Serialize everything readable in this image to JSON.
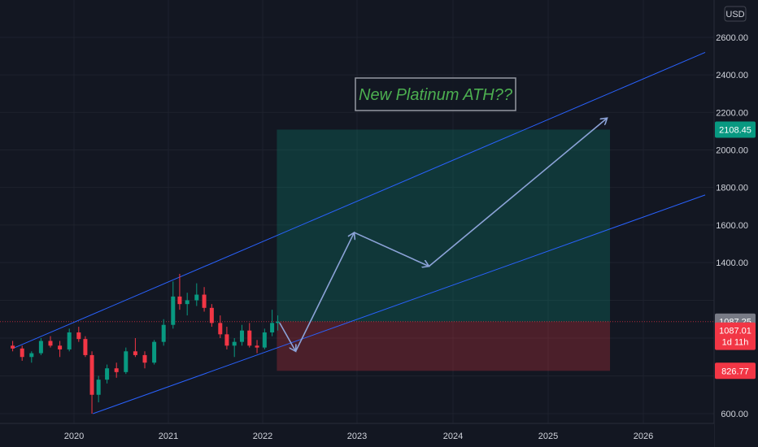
{
  "chart_data": {
    "type": "candlestick",
    "title": "",
    "xlabel": "",
    "ylabel": "",
    "currency": "USD",
    "y_ticks": [
      "600.00",
      "1400.00",
      "1600.00",
      "1800.00",
      "2000.00",
      "2200.00",
      "2400.00",
      "2600.00"
    ],
    "x_ticks": [
      "2020",
      "2021",
      "2022",
      "2023",
      "2024",
      "2025",
      "2026"
    ],
    "x_range": [
      "2019-06",
      "2026-10"
    ],
    "y_range": [
      560,
      2700
    ],
    "grid": true,
    "price_tags": [
      {
        "label": "2108.45",
        "value": 2108.45,
        "color": "#089981",
        "text_color": "#ffffff"
      },
      {
        "label": "1087.25",
        "value": 1087.25,
        "color": "#787b86",
        "text_color": "#ffffff"
      },
      {
        "label": "1087.01",
        "value": 1040,
        "color": "#f23645",
        "text_color": "#ffffff"
      },
      {
        "label": "1d 11h",
        "value": 980,
        "color": "#f23645",
        "text_color": "#ffffff"
      },
      {
        "label": "826.77",
        "value": 826.77,
        "color": "#f23645",
        "text_color": "#ffffff"
      }
    ],
    "long_position": {
      "entry": 1087.01,
      "target": 2108.45,
      "stop": 826.77,
      "start": "2022.15",
      "end": "2025.65"
    },
    "channel": {
      "upper": [
        {
          "x": 2019.35,
          "y": 945
        },
        {
          "x": 2026.65,
          "y": 2520
        }
      ],
      "lower": [
        {
          "x": 2020.2,
          "y": 600
        },
        {
          "x": 2026.65,
          "y": 1760
        }
      ]
    },
    "projection_path": [
      {
        "x": 2022.18,
        "y": 1080
      },
      {
        "x": 2022.35,
        "y": 930
      },
      {
        "x": 2022.97,
        "y": 1560
      },
      {
        "x": 2023.75,
        "y": 1380
      },
      {
        "x": 2025.62,
        "y": 2170
      }
    ],
    "annotation": "New Platinum ATH??",
    "series": [
      {
        "values": [
          {
            "t": 2019.35,
            "o": 960,
            "h": 985,
            "l": 930,
            "c": 945
          },
          {
            "t": 2019.45,
            "o": 945,
            "h": 960,
            "l": 880,
            "c": 900
          },
          {
            "t": 2019.55,
            "o": 900,
            "h": 930,
            "l": 870,
            "c": 920
          },
          {
            "t": 2019.65,
            "o": 920,
            "h": 1000,
            "l": 910,
            "c": 985
          },
          {
            "t": 2019.75,
            "o": 985,
            "h": 1010,
            "l": 950,
            "c": 960
          },
          {
            "t": 2019.85,
            "o": 960,
            "h": 985,
            "l": 900,
            "c": 940
          },
          {
            "t": 2019.95,
            "o": 940,
            "h": 1050,
            "l": 930,
            "c": 1030
          },
          {
            "t": 2020.05,
            "o": 1030,
            "h": 1060,
            "l": 980,
            "c": 995
          },
          {
            "t": 2020.12,
            "o": 995,
            "h": 1010,
            "l": 900,
            "c": 910
          },
          {
            "t": 2020.19,
            "o": 910,
            "h": 930,
            "l": 600,
            "c": 700
          },
          {
            "t": 2020.26,
            "o": 700,
            "h": 800,
            "l": 660,
            "c": 780
          },
          {
            "t": 2020.35,
            "o": 780,
            "h": 860,
            "l": 760,
            "c": 840
          },
          {
            "t": 2020.45,
            "o": 840,
            "h": 870,
            "l": 790,
            "c": 820
          },
          {
            "t": 2020.55,
            "o": 820,
            "h": 950,
            "l": 810,
            "c": 930
          },
          {
            "t": 2020.65,
            "o": 930,
            "h": 1000,
            "l": 900,
            "c": 910
          },
          {
            "t": 2020.75,
            "o": 910,
            "h": 930,
            "l": 840,
            "c": 870
          },
          {
            "t": 2020.85,
            "o": 870,
            "h": 990,
            "l": 860,
            "c": 980
          },
          {
            "t": 2020.95,
            "o": 980,
            "h": 1100,
            "l": 960,
            "c": 1070
          },
          {
            "t": 2021.05,
            "o": 1070,
            "h": 1300,
            "l": 1050,
            "c": 1220
          },
          {
            "t": 2021.12,
            "o": 1220,
            "h": 1340,
            "l": 1150,
            "c": 1180
          },
          {
            "t": 2021.2,
            "o": 1180,
            "h": 1240,
            "l": 1120,
            "c": 1200
          },
          {
            "t": 2021.3,
            "o": 1200,
            "h": 1290,
            "l": 1170,
            "c": 1230
          },
          {
            "t": 2021.38,
            "o": 1230,
            "h": 1270,
            "l": 1140,
            "c": 1160
          },
          {
            "t": 2021.46,
            "o": 1160,
            "h": 1180,
            "l": 1060,
            "c": 1080
          },
          {
            "t": 2021.55,
            "o": 1080,
            "h": 1120,
            "l": 1000,
            "c": 1020
          },
          {
            "t": 2021.62,
            "o": 1020,
            "h": 1060,
            "l": 940,
            "c": 960
          },
          {
            "t": 2021.7,
            "o": 960,
            "h": 1000,
            "l": 900,
            "c": 980
          },
          {
            "t": 2021.78,
            "o": 980,
            "h": 1070,
            "l": 960,
            "c": 1040
          },
          {
            "t": 2021.86,
            "o": 1040,
            "h": 1080,
            "l": 950,
            "c": 960
          },
          {
            "t": 2021.94,
            "o": 960,
            "h": 990,
            "l": 920,
            "c": 950
          },
          {
            "t": 2022.02,
            "o": 950,
            "h": 1050,
            "l": 940,
            "c": 1030
          },
          {
            "t": 2022.1,
            "o": 1030,
            "h": 1150,
            "l": 1010,
            "c": 1080
          },
          {
            "t": 2022.16,
            "o": 1080,
            "h": 1120,
            "l": 1040,
            "c": 1087
          }
        ]
      }
    ]
  }
}
